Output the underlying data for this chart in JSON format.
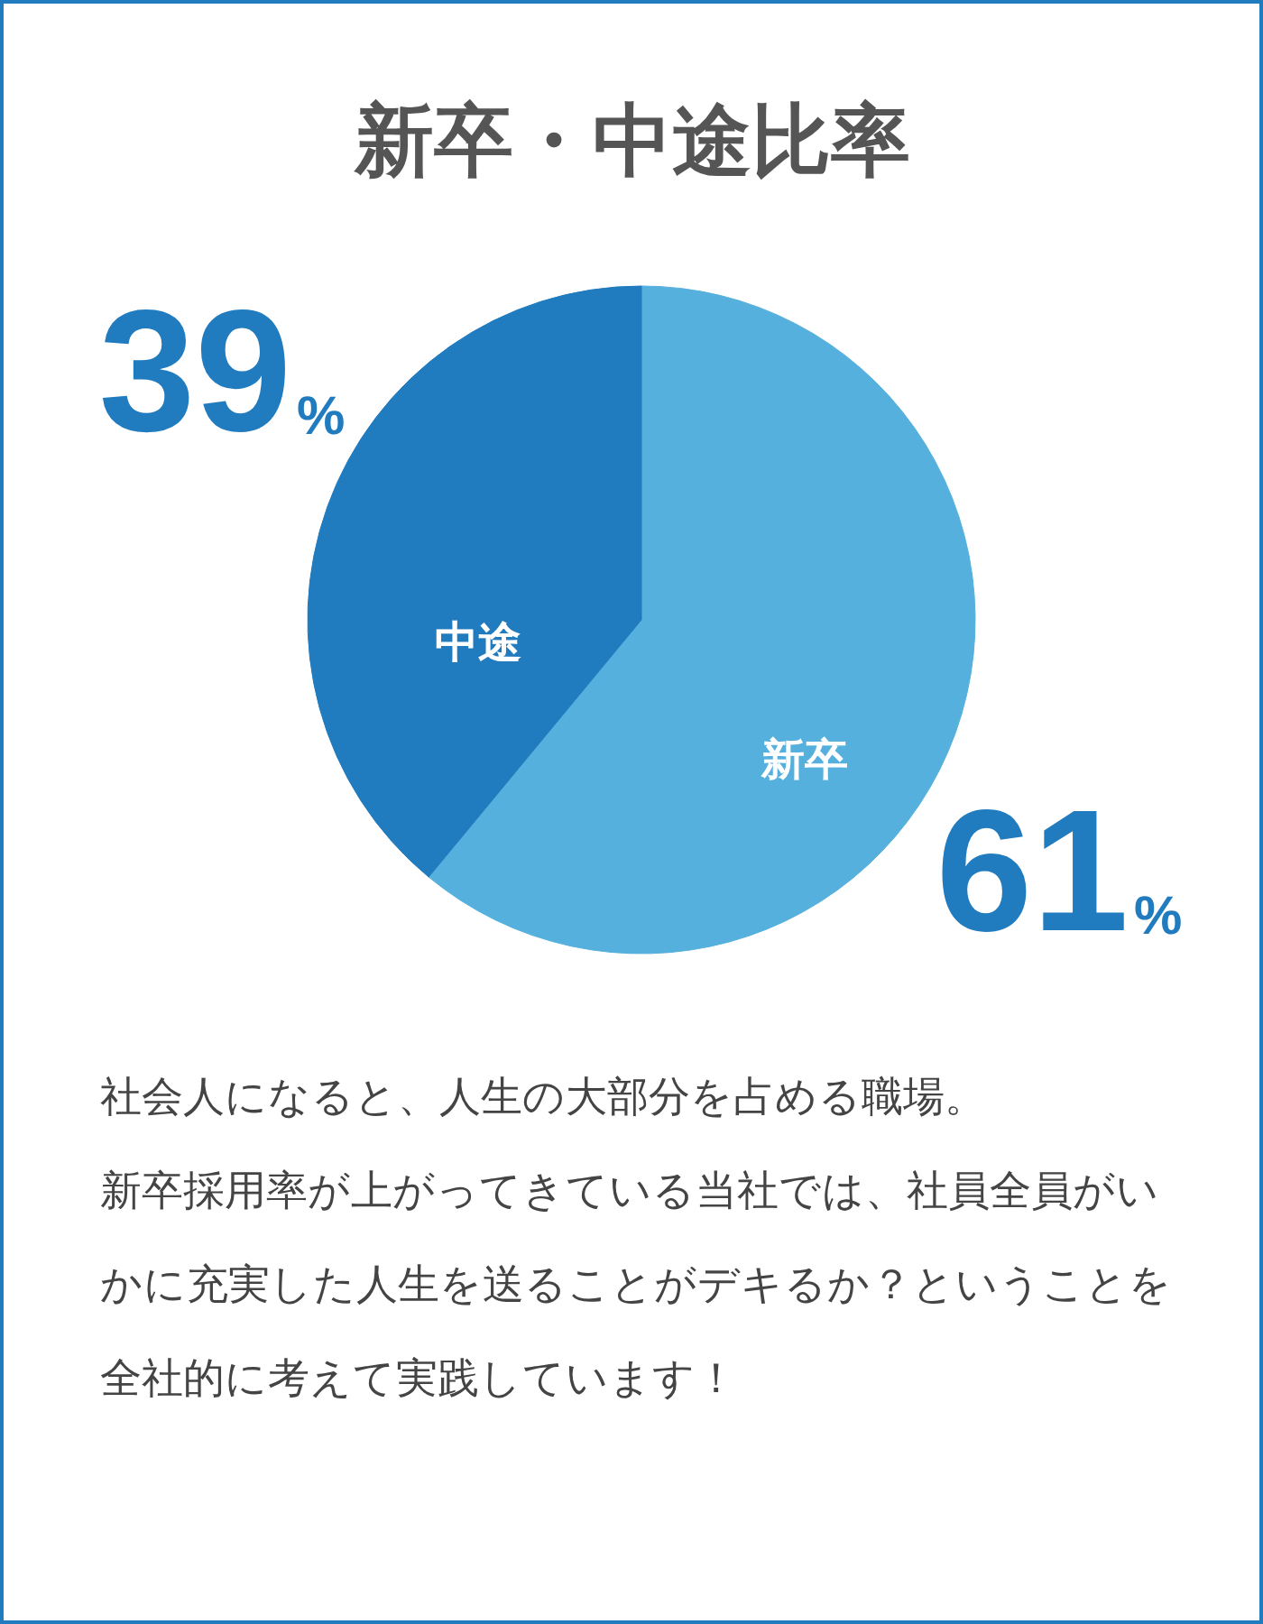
{
  "chart_data": {
    "type": "pie",
    "title": "新卒・中途比率",
    "categories": [
      "新卒",
      "中途"
    ],
    "values": [
      61,
      39
    ],
    "colors": [
      "#56b0dd",
      "#217bbf"
    ],
    "value_labels": [
      "61%",
      "39%"
    ],
    "annotations": [
      "社会人になると、人生の大部分を占める職場。",
      "新卒採用率が上がってきている当社では、社員全員がい",
      "かに充実した人生を送ることがデキるか？ということを",
      "全社的に考えて実践しています！"
    ]
  }
}
